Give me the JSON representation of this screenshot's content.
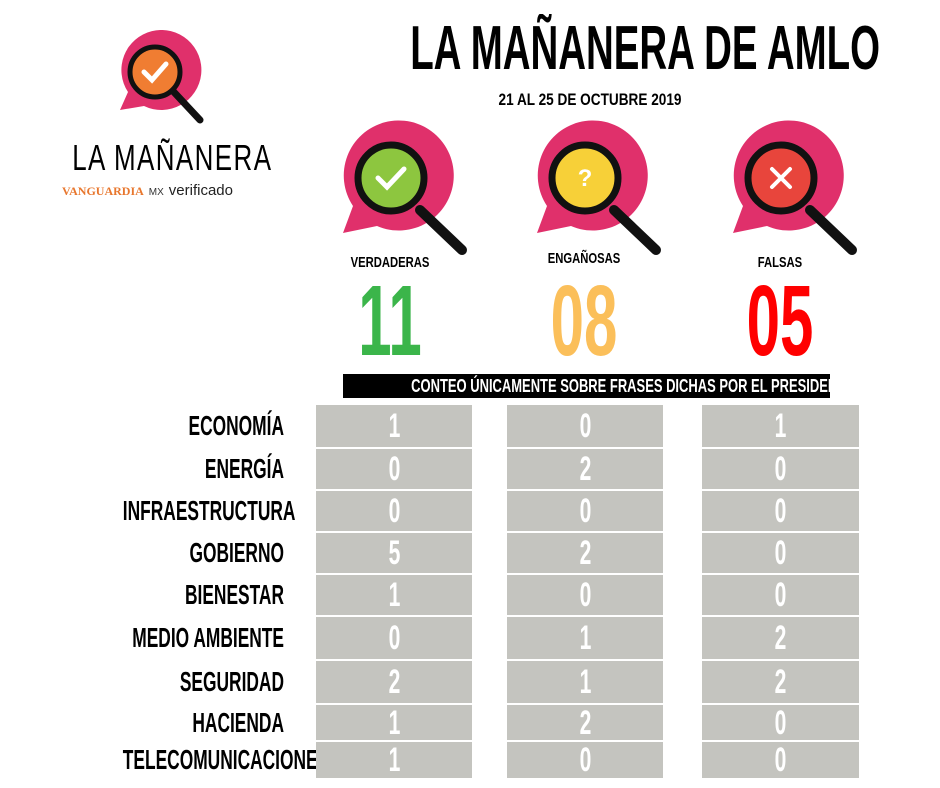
{
  "header": {
    "title": "LA MAÑANERA DE AMLO",
    "subtitle": "21 AL 25 DE OCTUBRE 2019"
  },
  "logo": {
    "name": "LA MAÑANERA",
    "partner1": "VANGUARDIA",
    "partner1_suffix": "MX",
    "partner2": "verificado"
  },
  "categories": [
    {
      "label": "VERDADERAS",
      "count": "11",
      "color": "#3bb54a",
      "icon": "check-icon",
      "icon_color": "#8dc63f"
    },
    {
      "label": "ENGAÑOSAS",
      "count": "08",
      "color": "#fbbf5a",
      "icon": "question-icon",
      "icon_color": "#f7d038"
    },
    {
      "label": "FALSAS",
      "count": "05",
      "color": "#ff0000",
      "icon": "x-icon",
      "icon_color": "#e8453c"
    }
  ],
  "note": "CONTEO ÚNICAMENTE SOBRE FRASES DICHAS POR EL PRESIDENTE",
  "bubble_color": "#e0306b",
  "rows": [
    {
      "topic": "ECONOMÍA",
      "values": [
        "1",
        "0",
        "1"
      ]
    },
    {
      "topic": "ENERGÍA",
      "values": [
        "0",
        "2",
        "0"
      ]
    },
    {
      "topic": "INFRAESTRUCTURA",
      "values": [
        "0",
        "0",
        "0"
      ]
    },
    {
      "topic": "GOBIERNO",
      "values": [
        "5",
        "2",
        "0"
      ]
    },
    {
      "topic": "BIENESTAR",
      "values": [
        "1",
        "0",
        "0"
      ]
    },
    {
      "topic": "MEDIO AMBIENTE",
      "values": [
        "0",
        "1",
        "2"
      ]
    },
    {
      "topic": "SEGURIDAD",
      "values": [
        "2",
        "1",
        "2"
      ]
    },
    {
      "topic": "HACIENDA",
      "values": [
        "1",
        "2",
        "0"
      ]
    },
    {
      "topic": "TELECOMUNICACIONES",
      "values": [
        "1",
        "0",
        "0"
      ]
    }
  ]
}
